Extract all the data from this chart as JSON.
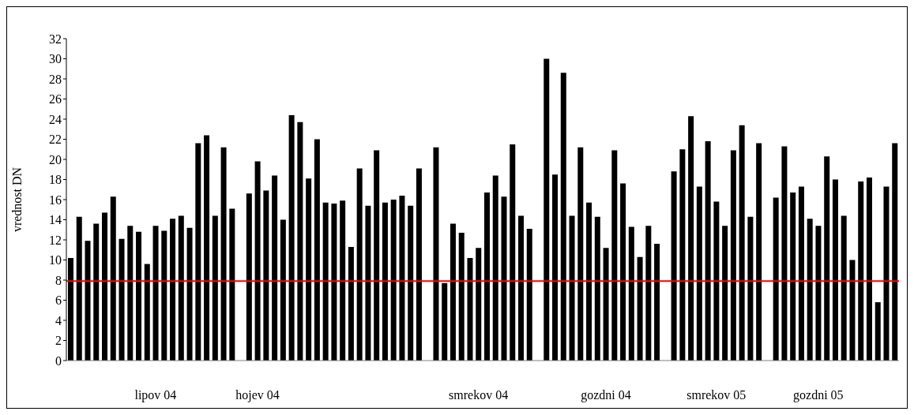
{
  "chart_data": {
    "type": "bar",
    "ylabel": "vrednost DN",
    "categories": [
      null,
      null,
      null,
      null,
      null,
      null,
      null,
      null,
      null,
      null,
      "lipov 04",
      null,
      null,
      null,
      null,
      null,
      null,
      null,
      null,
      null,
      null,
      null,
      "hojev 04",
      null,
      null,
      null,
      null,
      null,
      null,
      null,
      null,
      null,
      null,
      null,
      null,
      null,
      null,
      null,
      null,
      null,
      null,
      null,
      null,
      null,
      null,
      null,
      null,
      null,
      "smrekov 04",
      null,
      null,
      null,
      null,
      null,
      null,
      null,
      null,
      null,
      null,
      null,
      null,
      null,
      null,
      "gozdni 04",
      null,
      null,
      null,
      null,
      null,
      null,
      null,
      null,
      null,
      null,
      null,
      null,
      "smrekov 05",
      null,
      null,
      null,
      null,
      null,
      null,
      null,
      null,
      null,
      null,
      null,
      "gozdni 05",
      null,
      null,
      null,
      null,
      null,
      null,
      null,
      null,
      null
    ],
    "values": [
      10.2,
      14.3,
      11.9,
      13.6,
      14.7,
      16.3,
      12.1,
      13.4,
      12.8,
      9.6,
      13.4,
      12.9,
      14.1,
      14.4,
      13.2,
      21.6,
      22.4,
      14.4,
      21.2,
      15.1,
      null,
      16.6,
      19.8,
      16.9,
      18.4,
      14.0,
      24.4,
      23.7,
      18.1,
      22.0,
      15.7,
      15.6,
      15.9,
      11.3,
      19.1,
      15.4,
      20.9,
      15.7,
      16.0,
      16.4,
      15.4,
      19.1,
      null,
      21.2,
      7.7,
      13.6,
      12.7,
      10.2,
      11.2,
      16.7,
      18.4,
      16.3,
      21.5,
      14.4,
      13.1,
      null,
      30.0,
      18.5,
      28.6,
      14.4,
      21.2,
      15.7,
      14.3,
      11.2,
      20.9,
      17.6,
      13.3,
      10.3,
      13.4,
      11.6,
      null,
      18.8,
      21.0,
      24.3,
      17.3,
      21.8,
      15.8,
      13.4,
      20.9,
      23.4,
      14.3,
      21.6,
      null,
      16.2,
      21.3,
      16.7,
      17.3,
      14.1,
      13.4,
      20.3,
      18.0,
      14.4,
      10.0,
      17.8,
      18.2,
      5.8,
      17.3,
      21.6
    ],
    "color": "#000000",
    "ylim": [
      0,
      32
    ],
    "yticks": [
      0,
      2,
      4,
      6,
      8,
      10,
      12,
      14,
      16,
      18,
      20,
      22,
      24,
      26,
      28,
      30,
      32
    ],
    "ref_lines": [
      {
        "axis": "y",
        "value": 7.9,
        "color": "#ff0000"
      }
    ]
  }
}
